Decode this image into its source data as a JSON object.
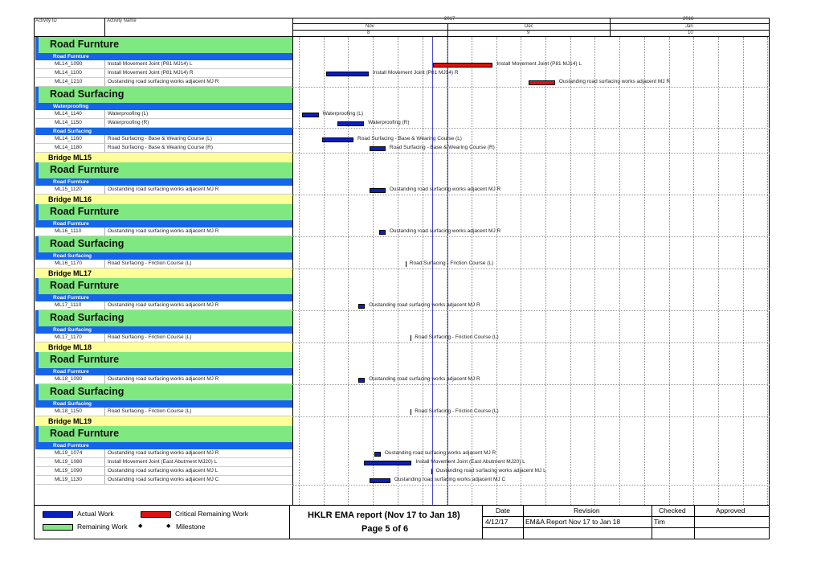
{
  "header": {
    "activity_id_label": "Activity ID",
    "activity_name_label": "Activity Name",
    "years": [
      "2017",
      "2018"
    ],
    "months": [
      "Nov",
      "Dec",
      "Jan"
    ],
    "month_numbers": [
      "8",
      "9",
      "10"
    ]
  },
  "chart_data": {
    "type": "gantt",
    "rows": [
      {
        "kind": "band",
        "label": "Road Furnture"
      },
      {
        "kind": "sub",
        "label": "Road Furnture"
      },
      {
        "kind": "act",
        "id": "ML14_1090",
        "name": "Install Movement Joint (P81 MJ14) L",
        "bar": {
          "type": "critical",
          "start": 0.295,
          "end": 0.42
        },
        "bar_label": "Install Movement Joint (P81 MJ14) L"
      },
      {
        "kind": "act",
        "id": "ML14_1100",
        "name": "Install Movement Joint (P81 MJ14) R",
        "bar": {
          "type": "actual",
          "start": 0.07,
          "end": 0.16
        },
        "bar_label": "Install Movement Joint (P81 MJ14) R"
      },
      {
        "kind": "act",
        "id": "ML14_1210",
        "name": "Oustanding road surfacing works adjacent MJ R",
        "bar": {
          "type": "critical",
          "start": 0.495,
          "end": 0.55
        },
        "bar_label": "Oustanding road surfacing works adjacent MJ R"
      },
      {
        "kind": "band",
        "label": "Road Surfacing"
      },
      {
        "kind": "sub",
        "label": "Waterproofing"
      },
      {
        "kind": "act",
        "id": "ML14_1140",
        "name": "Waterproofing (L)",
        "bar": {
          "type": "actual",
          "start": 0.02,
          "end": 0.055
        },
        "bar_label": "Waterproofing (L)"
      },
      {
        "kind": "act",
        "id": "ML14_1150",
        "name": "Waterproofing (R)",
        "bar": {
          "type": "actual",
          "start": 0.095,
          "end": 0.15
        },
        "bar_label": "Waterproofing (R)"
      },
      {
        "kind": "sub",
        "label": "Road Surfacing"
      },
      {
        "kind": "act",
        "id": "ML14_1160",
        "name": "Road Surfacing - Base & Wearing Course (L)",
        "bar": {
          "type": "actual",
          "start": 0.063,
          "end": 0.128
        },
        "bar_label": "Road Surfacing - Base & Wearing Course (L)"
      },
      {
        "kind": "act",
        "id": "ML14_1180",
        "name": "Road Surfacing - Base & Wearing Course (R)",
        "bar": {
          "type": "actual",
          "start": 0.162,
          "end": 0.195
        },
        "bar_label": "Road Surfacing - Base & Wearing Course (R)"
      },
      {
        "kind": "bridge",
        "label": "Bridge ML15"
      },
      {
        "kind": "band",
        "label": "Road Furnture"
      },
      {
        "kind": "sub",
        "label": "Road Furnture"
      },
      {
        "kind": "act",
        "id": "ML15_1120",
        "name": "Oustanding road surfacing works adjacent MJ R",
        "bar": {
          "type": "actual",
          "start": 0.162,
          "end": 0.195
        },
        "bar_label": "Oustanding road surfacing works adjacent MJ R"
      },
      {
        "kind": "bridge",
        "label": "Bridge ML16"
      },
      {
        "kind": "band",
        "label": "Road Furnture"
      },
      {
        "kind": "sub",
        "label": "Road Furnture"
      },
      {
        "kind": "act",
        "id": "ML16_1110",
        "name": "Oustanding road surfacing works adjacent MJ R",
        "bar": {
          "type": "actual",
          "start": 0.182,
          "end": 0.195
        },
        "bar_label": "Oustanding road surfacing works adjacent MJ R"
      },
      {
        "kind": "band",
        "label": "Road Surfacing"
      },
      {
        "kind": "sub",
        "label": "Road Surfacing"
      },
      {
        "kind": "act",
        "id": "ML16_1170",
        "name": "Road Surfacing - Friction Course (L)",
        "bar": {
          "type": "milestone",
          "start": 0.237
        },
        "bar_label": "Road Surfacing - Friction Course (L)"
      },
      {
        "kind": "bridge",
        "label": "Bridge ML17"
      },
      {
        "kind": "band",
        "label": "Road Furnture"
      },
      {
        "kind": "sub",
        "label": "Road Furnture"
      },
      {
        "kind": "act",
        "id": "ML17_1110",
        "name": "Oustanding road surfacing works adjacent MJ R",
        "bar": {
          "type": "actual",
          "start": 0.138,
          "end": 0.152
        },
        "bar_label": "Oustanding road surfacing works adjacent MJ R"
      },
      {
        "kind": "band",
        "label": "Road Surfacing"
      },
      {
        "kind": "sub",
        "label": "Road Surfacing"
      },
      {
        "kind": "act",
        "id": "ML17_1170",
        "name": "Road Surfacing - Friction Course (L)",
        "bar": {
          "type": "milestone",
          "start": 0.248
        },
        "bar_label": "Road Surfacing - Friction Course (L)"
      },
      {
        "kind": "bridge",
        "label": "Bridge ML18"
      },
      {
        "kind": "band",
        "label": "Road Furnture"
      },
      {
        "kind": "sub",
        "label": "Road Furnture"
      },
      {
        "kind": "act",
        "id": "ML18_1090",
        "name": "Oustanding road surfacing works adjacent MJ R",
        "bar": {
          "type": "actual",
          "start": 0.138,
          "end": 0.152
        },
        "bar_label": "Oustanding road surfacing works adjacent MJ R"
      },
      {
        "kind": "band",
        "label": "Road Surfacing"
      },
      {
        "kind": "sub",
        "label": "Road Surfacing"
      },
      {
        "kind": "act",
        "id": "ML18_1150",
        "name": "Road Surfacing - Friction Course (L)",
        "bar": {
          "type": "milestone",
          "start": 0.248
        },
        "bar_label": "Road Surfacing - Friction Course (L)"
      },
      {
        "kind": "bridge",
        "label": "Bridge ML19"
      },
      {
        "kind": "band",
        "label": "Road Furnture"
      },
      {
        "kind": "sub",
        "label": "Road Furnture"
      },
      {
        "kind": "act",
        "id": "ML19_1074",
        "name": "Oustanding road surfacing works adjacent MJ R",
        "bar": {
          "type": "actual",
          "start": 0.172,
          "end": 0.185
        },
        "bar_label": "Oustanding road surfacing works adjacent MJ R"
      },
      {
        "kind": "act",
        "id": "ML19_1080",
        "name": "Install Movement Joint (East Abutment MJ20) L",
        "bar": {
          "type": "actual",
          "start": 0.15,
          "end": 0.25
        },
        "bar_label": "Install Movement Joint (East Abutment MJ20) L"
      },
      {
        "kind": "act",
        "id": "ML19_1090",
        "name": "Oustanding road surfacing works adjacent MJ L",
        "bar": {
          "type": "milestone",
          "start": 0.292
        },
        "bar_label": "Oustanding road surfacing works adjacent MJ L"
      },
      {
        "kind": "act",
        "id": "ML19_1130",
        "name": "Oustanding road surfacing works adjacent MJ C",
        "bar": {
          "type": "actual",
          "start": 0.162,
          "end": 0.205
        },
        "bar_label": "Oustanding road surfacing works adjacent MJ C"
      }
    ]
  },
  "legend": {
    "actual_work": "Actual Work",
    "critical_remaining": "Critical Remaining Work",
    "remaining_work": "Remaining Work",
    "milestone": "Milestone",
    "actual_color": "#0b1fbf",
    "critical_color": "#e01010",
    "remaining_color": "#80e880"
  },
  "report": {
    "title": "HKLR EMA report (Nov 17 to Jan 18)",
    "page": "Page 5 of 6"
  },
  "revision_table": {
    "headers": [
      "Date",
      "Revision",
      "Checked",
      "Approved"
    ],
    "row": [
      "4/12/17",
      "EM&A Report Nov 17 to Jan 18",
      "Tim",
      ""
    ]
  }
}
